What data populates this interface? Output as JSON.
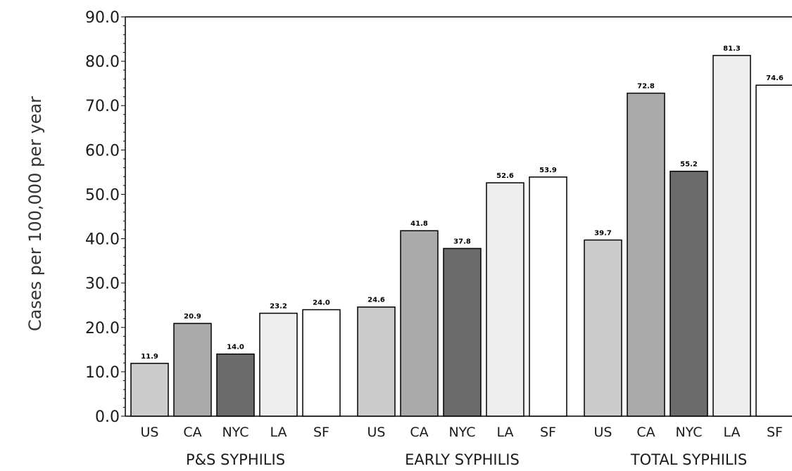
{
  "chart_data": {
    "type": "bar",
    "ylabel": "Cases per 100,000 per year",
    "xlabel": "",
    "title": "",
    "ylim": [
      0,
      90
    ],
    "y_ticks": [
      "0.0",
      "10.0",
      "20.0",
      "30.0",
      "40.0",
      "50.0",
      "60.0",
      "70.0",
      "80.0",
      "90.0"
    ],
    "grid": false,
    "legend": "none",
    "groups": [
      {
        "name": "P&S SYPHILIS",
        "bars": [
          {
            "category": "US",
            "value": 11.9,
            "label": "11.9",
            "color": "#cccccc"
          },
          {
            "category": "CA",
            "value": 20.9,
            "label": "20.9",
            "color": "#aaaaaa"
          },
          {
            "category": "NYC",
            "value": 14.0,
            "label": "14.0",
            "color": "#6b6b6b"
          },
          {
            "category": "LA",
            "value": 23.2,
            "label": "23.2",
            "color": "#eeeeee"
          },
          {
            "category": "SF",
            "value": 24.0,
            "label": "24.0",
            "color": "#ffffff"
          }
        ]
      },
      {
        "name": "EARLY SYPHILIS",
        "bars": [
          {
            "category": "US",
            "value": 24.6,
            "label": "24.6",
            "color": "#cccccc"
          },
          {
            "category": "CA",
            "value": 41.8,
            "label": "41.8",
            "color": "#aaaaaa"
          },
          {
            "category": "NYC",
            "value": 37.8,
            "label": "37.8",
            "color": "#6b6b6b"
          },
          {
            "category": "LA",
            "value": 52.6,
            "label": "52.6",
            "color": "#eeeeee"
          },
          {
            "category": "SF",
            "value": 53.9,
            "label": "53.9",
            "color": "#ffffff"
          }
        ]
      },
      {
        "name": "TOTAL SYPHILIS",
        "bars": [
          {
            "category": "US",
            "value": 39.7,
            "label": "39.7",
            "color": "#cccccc"
          },
          {
            "category": "CA",
            "value": 72.8,
            "label": "72.8",
            "color": "#aaaaaa"
          },
          {
            "category": "NYC",
            "value": 55.2,
            "label": "55.2",
            "color": "#6b6b6b"
          },
          {
            "category": "LA",
            "value": 81.3,
            "label": "81.3",
            "color": "#eeeeee"
          },
          {
            "category": "SF",
            "value": 74.6,
            "label": "74.6",
            "color": "#ffffff"
          }
        ]
      }
    ]
  }
}
